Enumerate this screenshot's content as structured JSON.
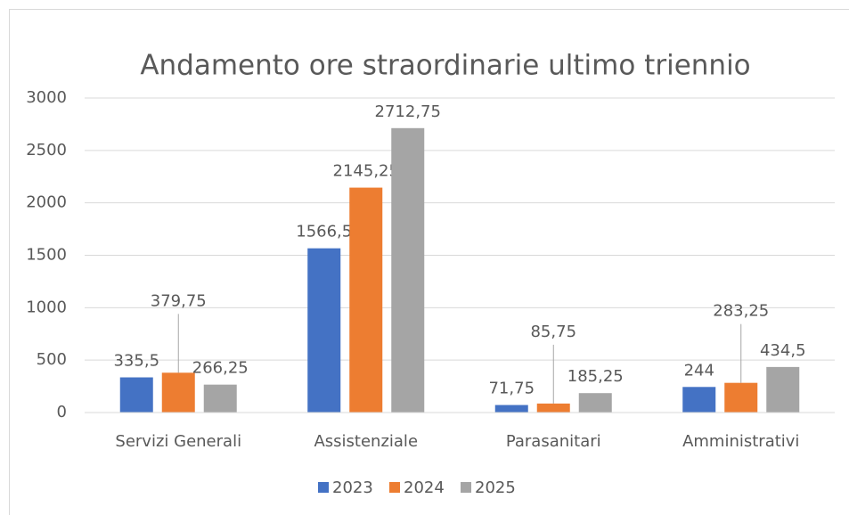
{
  "chart_data": {
    "type": "bar",
    "title": "Andamento ore straordinarie ultimo triennio",
    "categories": [
      "Servizi Generali",
      "Assistenziale",
      "Parasanitari",
      "Amministrativi"
    ],
    "series": [
      {
        "name": "2023",
        "color": "#4472c4",
        "values": [
          335.5,
          1566.5,
          71.75,
          244
        ],
        "value_labels": [
          "335,5",
          "1566,5",
          "71,75",
          "244"
        ]
      },
      {
        "name": "2024",
        "color": "#ed7d31",
        "values": [
          379.75,
          2145.25,
          85.75,
          283.25
        ],
        "value_labels": [
          "379,75",
          "2145,25",
          "85,75",
          "283,25"
        ]
      },
      {
        "name": "2025",
        "color": "#a5a5a5",
        "values": [
          266.25,
          2712.75,
          185.25,
          434.5
        ],
        "value_labels": [
          "266,25",
          "2712,75",
          "185,25",
          "434,5"
        ]
      }
    ],
    "ylim": [
      0,
      3000
    ],
    "yticks": [
      0,
      500,
      1000,
      1500,
      2000,
      2500,
      3000
    ],
    "grid": true,
    "legend": "bottom"
  }
}
